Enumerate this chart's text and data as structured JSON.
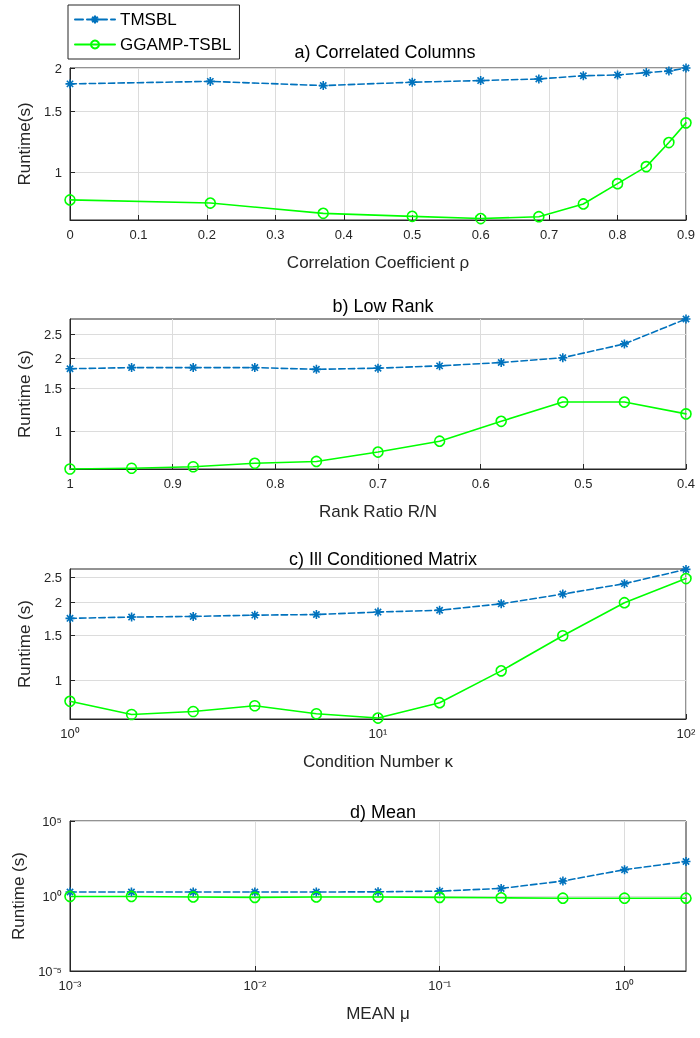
{
  "chart_data": [
    {
      "type": "line",
      "title": "a) Correlated Columns",
      "xlabel": "Correlation Coefficient ρ",
      "ylabel": "Runtime(s)",
      "log": "y",
      "grid": true,
      "legend": "top left",
      "x": [
        0,
        0.205,
        0.37,
        0.5,
        0.6,
        0.685,
        0.75,
        0.8,
        0.842,
        0.875,
        0.9
      ],
      "xlim": [
        0,
        0.9
      ],
      "xticks": [
        0,
        0.1,
        0.2,
        0.3,
        0.4,
        0.5,
        0.6,
        0.7,
        0.8,
        0.9
      ],
      "ylim": [
        0.73,
        2
      ],
      "yticks": [
        1,
        1.5,
        2
      ],
      "series": [
        {
          "name": "TMSBL",
          "color": "#0072bd",
          "marker": "cross",
          "line_style": "dashed",
          "values": [
            1.8,
            1.83,
            1.78,
            1.82,
            1.84,
            1.86,
            1.9,
            1.91,
            1.94,
            1.96,
            2.0
          ]
        },
        {
          "name": "GGAMP-TSBL",
          "color": "#00ff00",
          "marker": "circle",
          "line_style": "solid",
          "values": [
            0.834,
            0.817,
            0.763,
            0.748,
            0.737,
            0.746,
            0.812,
            0.929,
            1.04,
            1.22,
            1.39
          ]
        }
      ]
    },
    {
      "type": "line",
      "title": "b) Low Rank",
      "xlabel": "Rank Ratio R/N",
      "ylabel": "Runtime (s)",
      "log": "y",
      "grid": true,
      "x": [
        1,
        0.94,
        0.88,
        0.82,
        0.76,
        0.7,
        0.64,
        0.58,
        0.52,
        0.46,
        0.4
      ],
      "xlim": [
        1,
        0.4
      ],
      "xticks": [
        1,
        0.9,
        0.8,
        0.7,
        0.6,
        0.5,
        0.4
      ],
      "ylim": [
        0.7,
        2.9
      ],
      "yticks": [
        1,
        1.5,
        2,
        2.5
      ],
      "series": [
        {
          "color": "#0072bd",
          "marker": "cross",
          "line_style": "dashed",
          "values": [
            1.81,
            1.83,
            1.83,
            1.83,
            1.8,
            1.82,
            1.86,
            1.92,
            2.01,
            2.29,
            2.9
          ]
        },
        {
          "color": "#00ff00",
          "marker": "circle",
          "line_style": "solid",
          "values": [
            0.7,
            0.705,
            0.715,
            0.739,
            0.752,
            0.822,
            0.911,
            1.1,
            1.32,
            1.32,
            1.18
          ]
        }
      ]
    },
    {
      "type": "line",
      "title": "c) Ill Conditioned Matrix",
      "xlabel": "Condition Number κ",
      "ylabel": "Runtime (s)",
      "log": "xy",
      "grid": true,
      "x": [
        1,
        1.585,
        2.512,
        3.981,
        6.31,
        10,
        15.85,
        25.12,
        39.81,
        63.1,
        100
      ],
      "xlim": [
        1,
        100
      ],
      "xticks": [
        {
          "value": 1,
          "label": "10⁰"
        },
        {
          "value": 10,
          "label": "10¹"
        },
        {
          "value": 100,
          "label": "10²"
        }
      ],
      "ylim": [
        0.71,
        2.7
      ],
      "yticks": [
        1,
        1.5,
        2,
        2.5
      ],
      "series": [
        {
          "color": "#0072bd",
          "marker": "cross",
          "line_style": "dashed",
          "values": [
            1.74,
            1.76,
            1.77,
            1.79,
            1.8,
            1.84,
            1.87,
            1.98,
            2.16,
            2.37,
            2.69
          ]
        },
        {
          "color": "#00ff00",
          "marker": "circle",
          "line_style": "solid",
          "values": [
            0.831,
            0.739,
            0.759,
            0.799,
            0.744,
            0.716,
            0.821,
            1.09,
            1.49,
            2.0,
            2.48
          ]
        }
      ]
    },
    {
      "type": "line",
      "title": "d) Mean",
      "xlabel": "MEAN μ",
      "ylabel": "Runtime (s)",
      "log": "xy",
      "grid": true,
      "x": [
        0.001,
        0.00215,
        0.00464,
        0.01,
        0.0215,
        0.0464,
        0.1,
        0.215,
        0.464,
        1,
        2.15
      ],
      "xlim": [
        0.001,
        2.15
      ],
      "xticks": [
        {
          "value": 0.001,
          "label": "10⁻³"
        },
        {
          "value": 0.01,
          "label": "10⁻²"
        },
        {
          "value": 0.1,
          "label": "10⁻¹"
        },
        {
          "value": 1,
          "label": "10⁰"
        }
      ],
      "ylim": [
        1e-05,
        100000
      ],
      "yticks": [
        {
          "value": 1e-05,
          "label": "10⁻⁵"
        },
        {
          "value": 1,
          "label": "10⁰"
        },
        {
          "value": 100000,
          "label": "10⁵"
        }
      ],
      "series": [
        {
          "color": "#0072bd",
          "marker": "cross",
          "line_style": "dashed",
          "values": [
            1.85,
            1.85,
            1.85,
            1.85,
            1.85,
            1.9,
            2.1,
            3.2,
            10,
            57,
            200
          ]
        },
        {
          "color": "#00ff00",
          "marker": "circle",
          "line_style": "solid",
          "values": [
            0.93,
            0.93,
            0.86,
            0.81,
            0.86,
            0.86,
            0.81,
            0.76,
            0.71,
            0.71,
            0.71
          ]
        }
      ]
    }
  ]
}
